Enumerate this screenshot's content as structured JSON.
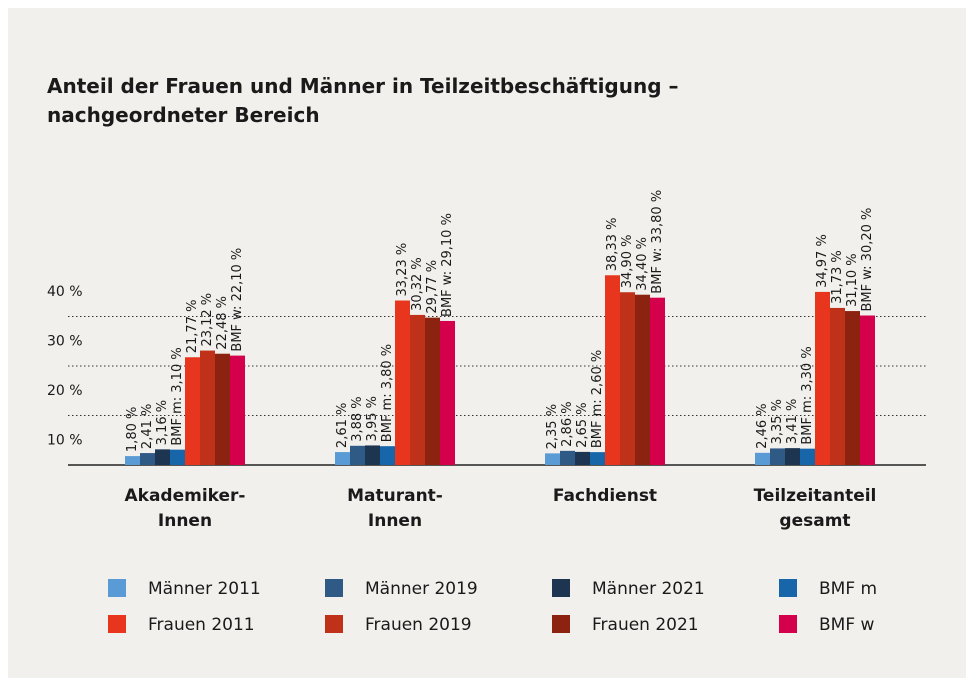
{
  "chart_data": {
    "type": "bar",
    "title": "Anteil der Frauen und Männer in Teilzeitbeschäftigung –\nnachgeordneter Bereich",
    "categories": [
      "Akademiker-\nInnen",
      "Maturant-\nInnen",
      "Fachdienst",
      "Teilzeitanteil\ngesamt"
    ],
    "ylim": [
      0,
      40
    ],
    "yticks": [
      {
        "value": 10,
        "label": "10 %"
      },
      {
        "value": 20,
        "label": "20 %"
      },
      {
        "value": 30,
        "label": "30 %"
      },
      {
        "value": 40,
        "label": "40 %"
      }
    ],
    "grid": true,
    "series": [
      {
        "name": "Männer 2011",
        "color": "#5b9bd5",
        "values": [
          1.8,
          2.61,
          2.35,
          2.46
        ],
        "value_labels": [
          "1,80 %",
          "2,61 %",
          "2,35 %",
          "2,46 %"
        ]
      },
      {
        "name": "Männer 2019",
        "color": "#2f5a86",
        "values": [
          2.41,
          3.88,
          2.86,
          3.35
        ],
        "value_labels": [
          "2,41 %",
          "3,88 %",
          "2,86 %",
          "3,35 %"
        ]
      },
      {
        "name": "Männer 2021",
        "color": "#1e3552",
        "values": [
          3.16,
          3.95,
          2.65,
          3.41
        ],
        "value_labels": [
          "3,16 %",
          "3,95 %",
          "2,65 %",
          "3,41 %"
        ]
      },
      {
        "name": "BMF m",
        "color": "#1666a9",
        "values": [
          3.1,
          3.8,
          2.6,
          3.3
        ],
        "value_labels": [
          "BMF m: 3,10 %",
          "BMF m: 3,80 %",
          "BMF m: 2,60 %",
          "BMF m: 3,30 %"
        ]
      },
      {
        "name": "Frauen 2011",
        "color": "#e8361e",
        "values": [
          21.77,
          33.23,
          38.33,
          34.97
        ],
        "value_labels": [
          "21,77 %",
          "33,23 %",
          "38,33 %",
          "34,97 %"
        ]
      },
      {
        "name": "Frauen 2019",
        "color": "#c0311a",
        "values": [
          23.12,
          30.32,
          34.9,
          31.73
        ],
        "value_labels": [
          "23,12 %",
          "30,32 %",
          "34,90 %",
          "31,73 %"
        ]
      },
      {
        "name": "Frauen 2021",
        "color": "#8c2311",
        "values": [
          22.48,
          29.77,
          34.4,
          31.1
        ],
        "value_labels": [
          "22,48 %",
          "29,77 %",
          "34,40 %",
          "31,10 %"
        ]
      },
      {
        "name": "BMF w",
        "color": "#d4004b",
        "values": [
          22.1,
          29.1,
          33.8,
          30.2
        ],
        "value_labels": [
          "BMF w: 22,10 %",
          "BMF w: 29,10 %",
          "BMF w: 33,80 %",
          "BMF w: 30,20 %"
        ]
      }
    ]
  }
}
